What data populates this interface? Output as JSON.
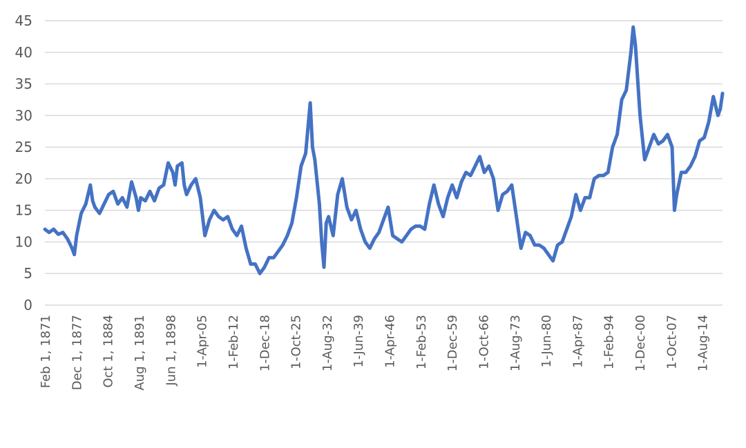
{
  "chart_data": {
    "type": "line",
    "title": "",
    "xlabel": "",
    "ylabel": "",
    "ylim": [
      0,
      45
    ],
    "yticks": [
      0,
      5,
      10,
      15,
      20,
      25,
      30,
      35,
      40,
      45
    ],
    "grid": "horizontal",
    "legend": "none",
    "xtick_labels": [
      "Feb 1, 1871",
      "Dec 1, 1877",
      "Oct 1, 1884",
      "Aug 1, 1891",
      "Jun 1, 1898",
      "1-Apr-05",
      "1-Feb-12",
      "1-Dec-18",
      "1-Oct-25",
      "1-Aug-32",
      "1-Jun-39",
      "1-Apr-46",
      "1-Feb-53",
      "1-Dec-59",
      "1-Oct-66",
      "1-Aug-73",
      "1-Jun-80",
      "1-Apr-87",
      "1-Feb-94",
      "1-Dec-00",
      "1-Oct-07",
      "1-Aug-14"
    ],
    "xtick_years": [
      1871.08,
      1877.92,
      1884.75,
      1891.58,
      1898.42,
      1905.25,
      1912.08,
      1918.92,
      1925.75,
      1932.58,
      1939.42,
      1946.25,
      1953.08,
      1959.92,
      1966.75,
      1973.58,
      1980.42,
      1987.25,
      1994.08,
      2000.92,
      2007.75,
      2014.58
    ],
    "line_color": "#4472C4",
    "series": [
      {
        "x": [
          1871.08,
          1872.0,
          1873.0,
          1874.0,
          1875.0,
          1876.0,
          1877.0,
          1877.5,
          1878.0,
          1879.0,
          1880.0,
          1881.0,
          1881.5,
          1882.0,
          1883.0,
          1884.0,
          1885.0,
          1886.0,
          1887.0,
          1888.0,
          1889.0,
          1890.0,
          1891.0,
          1891.5,
          1892.0,
          1893.0,
          1894.0,
          1895.0,
          1896.0,
          1897.0,
          1898.0,
          1899.0,
          1899.5,
          1900.0,
          1901.0,
          1901.5,
          1902.0,
          1903.0,
          1904.0,
          1905.0,
          1906.0,
          1907.0,
          1908.0,
          1909.0,
          1910.0,
          1911.0,
          1912.0,
          1913.0,
          1914.0,
          1915.0,
          1916.0,
          1917.0,
          1918.0,
          1919.0,
          1920.0,
          1921.0,
          1922.0,
          1923.0,
          1924.0,
          1925.0,
          1926.0,
          1927.0,
          1928.0,
          1929.0,
          1929.5,
          1930.0,
          1931.0,
          1931.5,
          1932.0,
          1932.5,
          1933.0,
          1934.0,
          1935.0,
          1936.0,
          1937.0,
          1938.0,
          1939.0,
          1940.0,
          1941.0,
          1942.0,
          1943.0,
          1944.0,
          1945.0,
          1946.0,
          1947.0,
          1948.0,
          1949.0,
          1950.0,
          1951.0,
          1952.0,
          1953.0,
          1954.0,
          1955.0,
          1956.0,
          1957.0,
          1958.0,
          1959.0,
          1960.0,
          1961.0,
          1962.0,
          1963.0,
          1964.0,
          1965.0,
          1966.0,
          1967.0,
          1968.0,
          1969.0,
          1970.0,
          1971.0,
          1972.0,
          1973.0,
          1974.0,
          1975.0,
          1976.0,
          1977.0,
          1978.0,
          1979.0,
          1980.0,
          1981.0,
          1982.0,
          1983.0,
          1984.0,
          1985.0,
          1986.0,
          1987.0,
          1988.0,
          1989.0,
          1990.0,
          1991.0,
          1992.0,
          1993.0,
          1994.0,
          1995.0,
          1996.0,
          1997.0,
          1998.0,
          1999.0,
          1999.5,
          2000.0,
          2001.0,
          2002.0,
          2003.0,
          2004.0,
          2005.0,
          2006.0,
          2007.0,
          2008.0,
          2008.5,
          2009.0,
          2010.0,
          2011.0,
          2012.0,
          2013.0,
          2014.0,
          2015.0,
          2016.0,
          2017.0,
          2018.0,
          2018.5,
          2019.0
        ],
        "y": [
          12.0,
          11.5,
          12.0,
          11.2,
          11.5,
          10.5,
          9.0,
          8.0,
          11.0,
          14.5,
          16.0,
          19.0,
          16.5,
          15.5,
          14.5,
          16.0,
          17.5,
          18.0,
          16.0,
          17.0,
          15.5,
          19.5,
          17.0,
          15.0,
          17.0,
          16.5,
          18.0,
          16.5,
          18.5,
          19.0,
          22.5,
          21.0,
          19.0,
          22.0,
          22.5,
          19.0,
          17.5,
          19.0,
          20.0,
          17.0,
          11.0,
          13.5,
          15.0,
          14.0,
          13.5,
          14.0,
          12.0,
          11.0,
          12.5,
          9.0,
          6.5,
          6.5,
          5.0,
          6.0,
          7.5,
          7.5,
          8.5,
          9.5,
          11.0,
          13.0,
          17.0,
          22.0,
          24.0,
          32.0,
          25.0,
          23.0,
          16.0,
          10.0,
          6.0,
          13.0,
          14.0,
          11.0,
          17.5,
          20.0,
          15.5,
          13.5,
          15.0,
          12.0,
          10.0,
          9.0,
          10.5,
          11.5,
          13.5,
          15.5,
          11.0,
          10.5,
          10.0,
          11.0,
          12.0,
          12.5,
          12.5,
          12.0,
          16.0,
          19.0,
          16.0,
          14.0,
          17.0,
          19.0,
          17.0,
          19.5,
          21.0,
          20.5,
          22.0,
          23.5,
          21.0,
          22.0,
          20.0,
          15.0,
          17.5,
          18.0,
          19.0,
          14.0,
          9.0,
          11.5,
          11.0,
          9.5,
          9.5,
          9.0,
          8.0,
          7.0,
          9.5,
          10.0,
          12.0,
          14.0,
          17.5,
          15.0,
          17.0,
          17.0,
          20.0,
          20.5,
          20.5,
          21.0,
          25.0,
          27.0,
          32.5,
          34.0,
          40.0,
          44.0,
          41.0,
          30.0,
          23.0,
          25.0,
          27.0,
          25.5,
          26.0,
          27.0,
          25.0,
          15.0,
          17.5,
          21.0,
          21.0,
          22.0,
          23.5,
          26.0,
          26.5,
          29.0,
          33.0,
          30.0,
          31.0,
          33.5
        ]
      }
    ]
  }
}
